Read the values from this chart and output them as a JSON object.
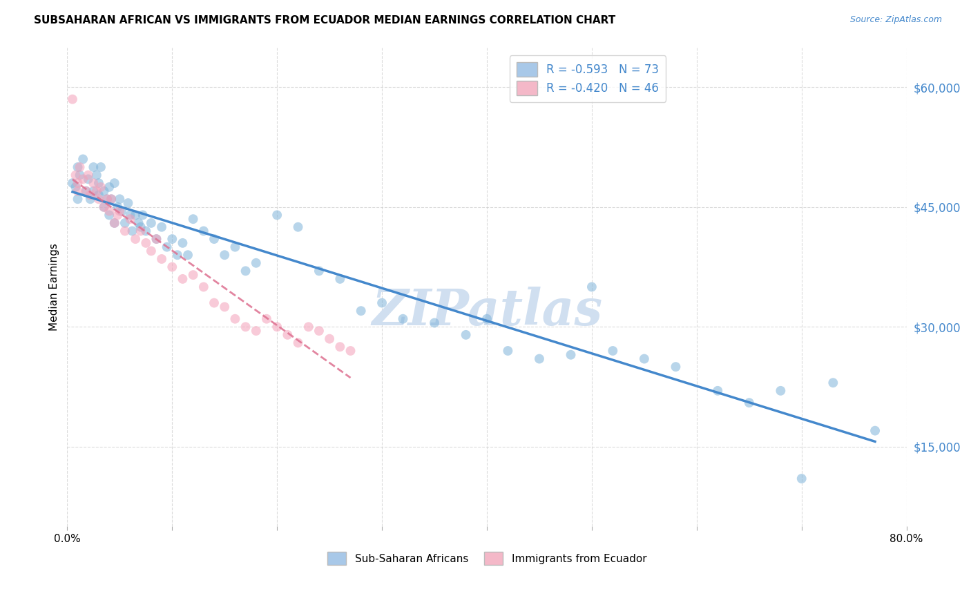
{
  "title": "SUBSAHARAN AFRICAN VS IMMIGRANTS FROM ECUADOR MEDIAN EARNINGS CORRELATION CHART",
  "source": "Source: ZipAtlas.com",
  "ylabel": "Median Earnings",
  "yticks": [
    15000,
    30000,
    45000,
    60000
  ],
  "ytick_labels": [
    "$15,000",
    "$30,000",
    "$45,000",
    "$60,000"
  ],
  "xlim": [
    0.0,
    0.8
  ],
  "ylim": [
    5000,
    65000
  ],
  "legend_label1": "R = -0.593   N = 73",
  "legend_label2": "R = -0.420   N = 46",
  "legend_color1": "#a8c8e8",
  "legend_color2": "#f4b8c8",
  "scatter_color1": "#7fb3d9",
  "scatter_color2": "#f4a0b8",
  "line_color1": "#4488cc",
  "line_color2": "#dd7090",
  "watermark": "ZIPatlas",
  "watermark_color": "#d0dff0",
  "blue_scatter_x": [
    0.005,
    0.008,
    0.01,
    0.01,
    0.012,
    0.015,
    0.018,
    0.02,
    0.022,
    0.025,
    0.025,
    0.028,
    0.03,
    0.03,
    0.032,
    0.035,
    0.035,
    0.038,
    0.04,
    0.04,
    0.042,
    0.045,
    0.045,
    0.048,
    0.05,
    0.052,
    0.055,
    0.058,
    0.06,
    0.062,
    0.065,
    0.068,
    0.07,
    0.072,
    0.075,
    0.08,
    0.085,
    0.09,
    0.095,
    0.1,
    0.105,
    0.11,
    0.115,
    0.12,
    0.13,
    0.14,
    0.15,
    0.16,
    0.17,
    0.18,
    0.2,
    0.22,
    0.24,
    0.26,
    0.28,
    0.3,
    0.32,
    0.35,
    0.38,
    0.4,
    0.42,
    0.45,
    0.48,
    0.5,
    0.52,
    0.55,
    0.58,
    0.62,
    0.65,
    0.68,
    0.7,
    0.73,
    0.77
  ],
  "blue_scatter_y": [
    48000,
    47500,
    50000,
    46000,
    49000,
    51000,
    47000,
    48500,
    46000,
    50000,
    47000,
    49000,
    48000,
    46500,
    50000,
    47000,
    45000,
    46000,
    47500,
    44000,
    46000,
    48000,
    43000,
    45000,
    46000,
    44500,
    43000,
    45500,
    44000,
    42000,
    44000,
    43000,
    42500,
    44000,
    42000,
    43000,
    41000,
    42500,
    40000,
    41000,
    39000,
    40500,
    39000,
    43500,
    42000,
    41000,
    39000,
    40000,
    37000,
    38000,
    44000,
    42500,
    37000,
    36000,
    32000,
    33000,
    31000,
    30500,
    29000,
    31000,
    27000,
    26000,
    26500,
    35000,
    27000,
    26000,
    25000,
    22000,
    20500,
    22000,
    11000,
    23000,
    17000
  ],
  "pink_scatter_x": [
    0.005,
    0.008,
    0.01,
    0.01,
    0.012,
    0.015,
    0.018,
    0.02,
    0.022,
    0.025,
    0.028,
    0.03,
    0.032,
    0.035,
    0.038,
    0.04,
    0.042,
    0.045,
    0.048,
    0.05,
    0.055,
    0.06,
    0.065,
    0.07,
    0.075,
    0.08,
    0.085,
    0.09,
    0.1,
    0.11,
    0.12,
    0.13,
    0.14,
    0.15,
    0.16,
    0.17,
    0.18,
    0.19,
    0.2,
    0.21,
    0.22,
    0.23,
    0.24,
    0.25,
    0.26,
    0.27
  ],
  "pink_scatter_y": [
    58500,
    49000,
    48000,
    47000,
    50000,
    48500,
    47000,
    49000,
    46500,
    48000,
    47000,
    46000,
    47500,
    45000,
    46000,
    44500,
    46000,
    43000,
    44000,
    44500,
    42000,
    43500,
    41000,
    42000,
    40500,
    39500,
    41000,
    38500,
    37500,
    36000,
    36500,
    35000,
    33000,
    32500,
    31000,
    30000,
    29500,
    31000,
    30000,
    29000,
    28000,
    30000,
    29500,
    28500,
    27500,
    27000
  ]
}
